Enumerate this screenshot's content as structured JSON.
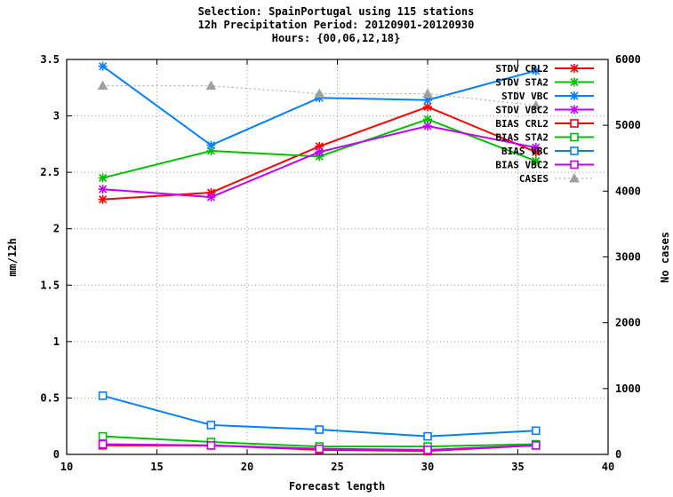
{
  "chart_data": {
    "type": "line",
    "title_lines": [
      "Selection: SpainPortugal using   115 stations",
      "12h Precipitation    Period: 20120901-20120930",
      "Hours: {00,06,12,18}"
    ],
    "xlabel": "Forecast length",
    "ylabel": "mm/12h",
    "y2label": "No cases",
    "xlim": [
      10,
      40
    ],
    "ylim": [
      0,
      3.5
    ],
    "y2lim": [
      0,
      6000
    ],
    "x_ticks": [
      "10",
      "15",
      "20",
      "25",
      "30",
      "35",
      "40"
    ],
    "y_ticks": [
      "0",
      "0.5",
      "1",
      "1.5",
      "2",
      "2.5",
      "3",
      "3.5"
    ],
    "y2_ticks": [
      "0",
      "1000",
      "2000",
      "3000",
      "4000",
      "5000",
      "6000"
    ],
    "grid": true,
    "legend_position": "top-right",
    "x": [
      12,
      18,
      24,
      30,
      36
    ],
    "series": [
      {
        "name": "STDV CRL2",
        "color": "#ff0000",
        "marker": "star",
        "axis": "y",
        "dashed": false,
        "values": [
          2.26,
          2.32,
          2.73,
          3.08,
          2.68
        ]
      },
      {
        "name": "STDV STA2",
        "color": "#00c000",
        "marker": "star",
        "axis": "y",
        "dashed": false,
        "values": [
          2.45,
          2.69,
          2.64,
          2.97,
          2.6
        ]
      },
      {
        "name": "STDV VBC",
        "color": "#0080ff",
        "marker": "star",
        "axis": "y",
        "dashed": false,
        "values": [
          3.44,
          2.74,
          3.16,
          3.14,
          3.4
        ]
      },
      {
        "name": "STDV VBC2",
        "color": "#c000ff",
        "marker": "star",
        "axis": "y",
        "dashed": false,
        "values": [
          2.35,
          2.28,
          2.68,
          2.91,
          2.72
        ]
      },
      {
        "name": "BIAS CRL2",
        "color": "#ff0000",
        "marker": "square",
        "axis": "y",
        "dashed": false,
        "values": [
          0.08,
          0.08,
          0.04,
          0.03,
          0.08
        ]
      },
      {
        "name": "BIAS STA2",
        "color": "#00c000",
        "marker": "square",
        "axis": "y",
        "dashed": false,
        "values": [
          0.16,
          0.11,
          0.07,
          0.07,
          0.09
        ]
      },
      {
        "name": "BIAS VBC",
        "color": "#0080ff",
        "marker": "square",
        "axis": "y",
        "dashed": false,
        "values": [
          0.52,
          0.26,
          0.22,
          0.16,
          0.21
        ]
      },
      {
        "name": "BIAS VBC2",
        "color": "#c000ff",
        "marker": "square",
        "axis": "y",
        "dashed": false,
        "values": [
          0.09,
          0.08,
          0.05,
          0.04,
          0.08
        ]
      },
      {
        "name": "CASES",
        "color": "#a0a0a0",
        "marker": "triangle",
        "axis": "y2",
        "dashed": true,
        "values": [
          5600,
          5600,
          5480,
          5480,
          5300
        ]
      }
    ]
  }
}
